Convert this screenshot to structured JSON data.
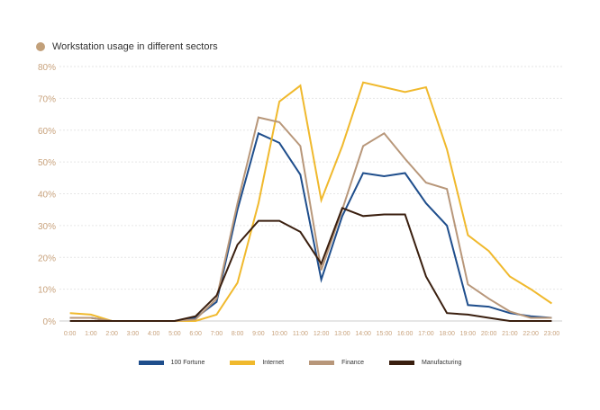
{
  "colors": {
    "title_dot": "#c2a07a",
    "axis_text": "#c8a27c",
    "grid": "#e6e6e6",
    "axis_line": "#cccccc"
  },
  "chart_data": {
    "type": "line",
    "title": "Workstation usage in different sectors",
    "xlabel": "",
    "ylabel": "",
    "ylim": [
      0,
      80
    ],
    "yticks": [
      "0%",
      "10%",
      "20%",
      "30%",
      "40%",
      "50%",
      "60%",
      "70%",
      "80%"
    ],
    "grid": true,
    "legend_position": "bottom",
    "categories": [
      "0:00",
      "1:00",
      "2:00",
      "3:00",
      "4:00",
      "5:00",
      "6:00",
      "7:00",
      "8:00",
      "9:00",
      "10:00",
      "11:00",
      "12:00",
      "13:00",
      "14:00",
      "15:00",
      "16:00",
      "17:00",
      "18:00",
      "19:00",
      "20:00",
      "21:00",
      "22:00",
      "23:00"
    ],
    "series": [
      {
        "name": "100 Fortune",
        "color": "#1f4e8c",
        "values": [
          1,
          1,
          0,
          0,
          0,
          0,
          1,
          6,
          35,
          59,
          56,
          46,
          13,
          33,
          46.5,
          45.5,
          46.5,
          37,
          30,
          5,
          4.5,
          2.5,
          1.5,
          1
        ]
      },
      {
        "name": "Internet",
        "color": "#f0b92d",
        "values": [
          2.5,
          2,
          0,
          0,
          0,
          0,
          0,
          2,
          12,
          37,
          69,
          74,
          38,
          55,
          75,
          73.5,
          72,
          73.5,
          54,
          27,
          22,
          14,
          10,
          5.5
        ]
      },
      {
        "name": "Finance",
        "color": "#b8977a",
        "values": [
          1,
          1,
          0,
          0,
          0,
          0,
          0.5,
          7,
          37,
          64,
          62.5,
          55,
          16,
          35,
          55,
          59,
          51,
          43.5,
          41.5,
          11.5,
          7,
          3,
          1,
          1
        ]
      },
      {
        "name": "Manufacturing",
        "color": "#3a1f0f",
        "values": [
          0,
          0,
          0,
          0,
          0,
          0,
          1.5,
          8,
          24,
          31.5,
          31.5,
          28,
          18,
          35.5,
          33,
          33.5,
          33.5,
          14,
          2.5,
          2,
          1,
          0,
          0,
          0
        ]
      }
    ]
  }
}
